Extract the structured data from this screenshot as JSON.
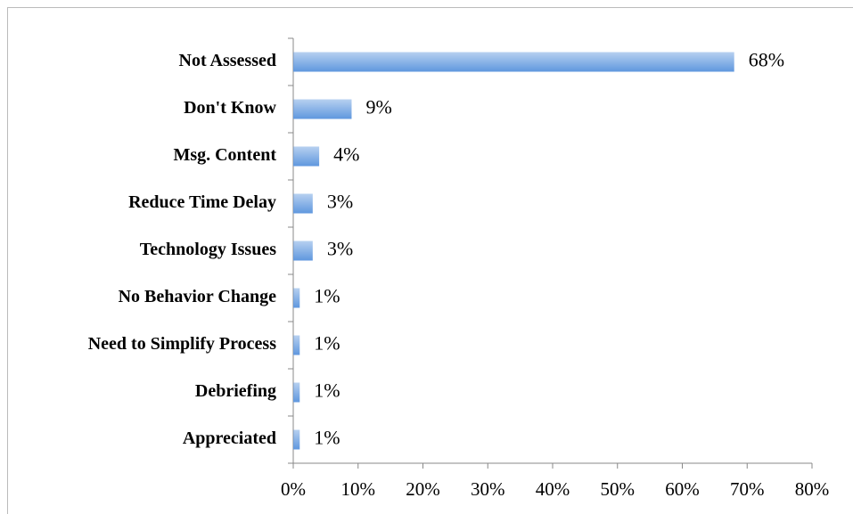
{
  "chart_data": {
    "type": "bar",
    "orientation": "horizontal",
    "categories": [
      "Not Assessed",
      "Don't Know",
      "Msg. Content",
      "Reduce  Time Delay",
      "Technology Issues",
      "No Behavior Change",
      "Need to Simplify Process",
      "Debriefing",
      "Appreciated"
    ],
    "values": [
      68,
      9,
      4,
      3,
      3,
      1,
      1,
      1,
      1
    ],
    "value_labels": [
      "68%",
      "9%",
      "4%",
      "3%",
      "3%",
      "1%",
      "1%",
      "1%",
      "1%"
    ],
    "color": "#5f97de",
    "xlim": [
      0,
      80
    ],
    "xticks": [
      {
        "value": 0,
        "label": "0%"
      },
      {
        "value": 10,
        "label": "10%"
      },
      {
        "value": 20,
        "label": "20%"
      },
      {
        "value": 30,
        "label": "30%"
      },
      {
        "value": 40,
        "label": "40%"
      },
      {
        "value": 50,
        "label": "50%"
      },
      {
        "value": 60,
        "label": "60%"
      },
      {
        "value": 70,
        "label": "70%"
      },
      {
        "value": 80,
        "label": "80%"
      }
    ],
    "grid": false
  }
}
